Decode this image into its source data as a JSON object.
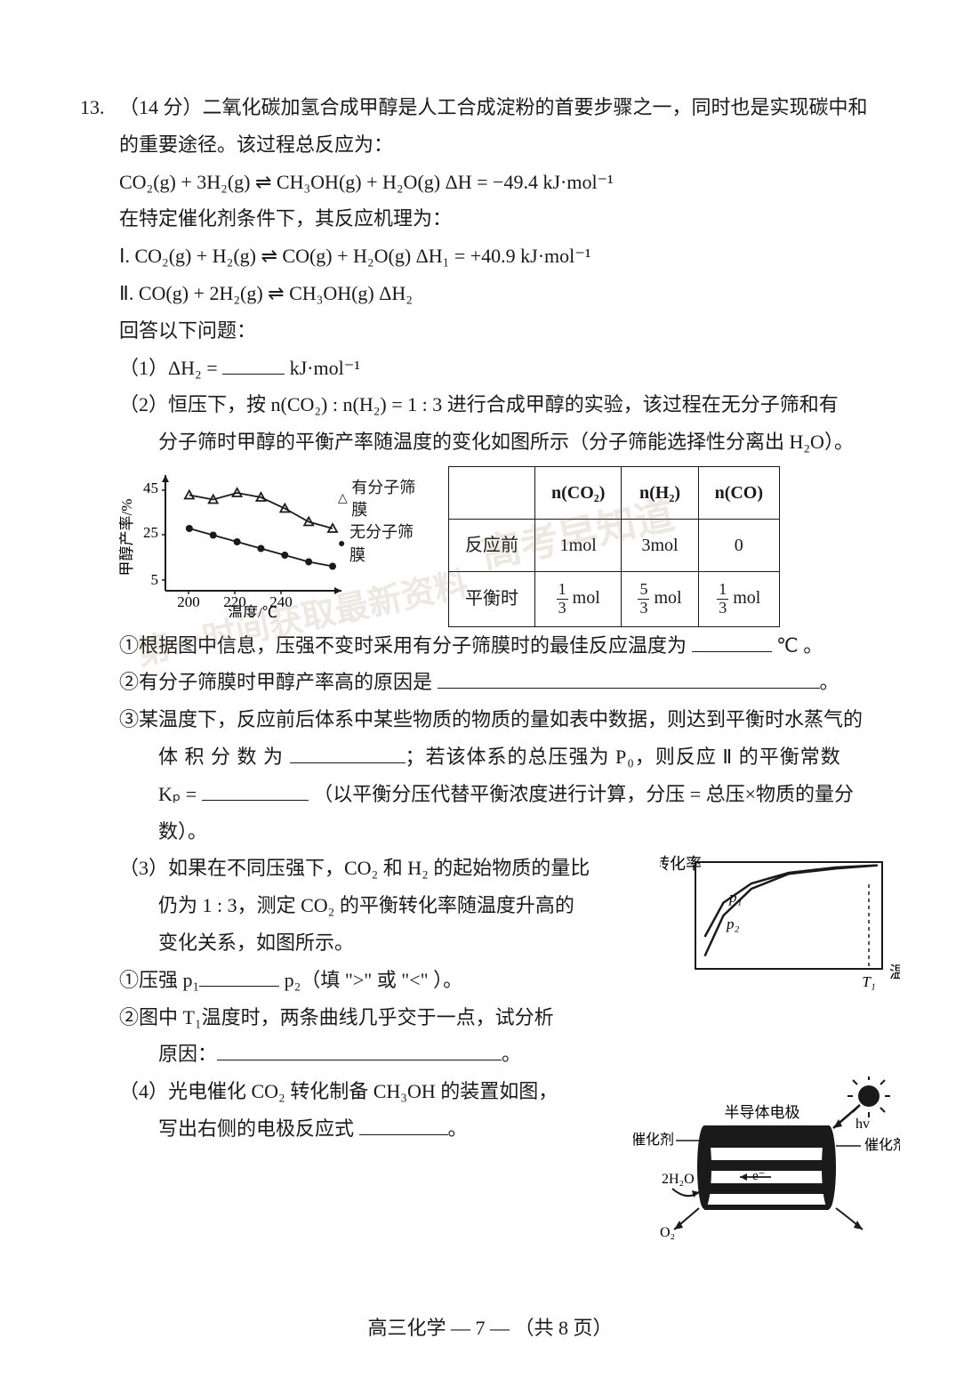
{
  "question": {
    "number": "13.",
    "points": "（14 分）",
    "stem_a": "二氧化碳加氢合成甲醇是人工合成淀粉的首要步骤之一，同时也是实现碳中和",
    "stem_b": "的重要途径。该过程总反应为：",
    "overall_eqn": "CO₂(g) + 3H₂(g) ⇌ CH₃OH(g) + H₂O(g)    ΔH = −49.4 kJ·mol⁻¹",
    "mech_intro": "在特定催化剂条件下，其反应机理为：",
    "mech_I": "Ⅰ. CO₂(g) + H₂(g) ⇌ CO(g) + H₂O(g)       ΔH₁ = +40.9 kJ·mol⁻¹",
    "mech_II": "Ⅱ. CO(g) + 2H₂(g) ⇌ CH₃OH(g)              ΔH₂",
    "answer_prompt": "回答以下问题：",
    "p1": "（1）ΔH₂ = ",
    "p1_unit": " kJ·mol⁻¹",
    "p2": "（2）恒压下，按 n(CO₂) : n(H₂) = 1 : 3 进行合成甲醇的实验，该过程在无分子筛和有",
    "p2b": "分子筛时甲醇的平衡产率随温度的变化如图所示（分子筛能选择性分离出 H₂O）。",
    "p2_1a": "①根据图中信息，压强不变时采用有分子筛膜时的最佳反应温度为 ",
    "p2_1b": "℃ 。",
    "p2_2": "②有分子筛膜时甲醇产率高的原因是 ",
    "p2_3a": "③某温度下，反应前后体系中某些物质的物质的量如表中数据，则达到平衡时水蒸气的",
    "p2_3b": "体 积 分 数 为 ",
    "p2_3c": "；若该体系的总压强为 P₀，则反应 Ⅱ 的平衡常数",
    "p2_3d": "Kₚ = ",
    "p2_3e": "（以平衡分压代替平衡浓度进行计算，分压 = 总压×物质的量分数）。",
    "p3a": "（3）如果在不同压强下，CO₂ 和 H₂ 的起始物质的量比",
    "p3b": "仍为 1 : 3，测定 CO₂ 的平衡转化率随温度升高的",
    "p3c": "变化关系，如图所示。",
    "p3_1a": "①压强 p₁",
    "p3_1b": " p₂（填 \">\" 或 \"<\" ）。",
    "p3_2a": "②图中 T₁温度时，两条曲线几乎交于一点，试分析",
    "p3_2b": "原因：",
    "p4a": "（4）光电催化 CO₂ 转化制备 CH₃OH 的装置如图，",
    "p4b": "写出右侧的电极反应式 ",
    "footer": "高三化学  — 7 —  （共 8 页）"
  },
  "chart1": {
    "type": "line-scatter",
    "xlabel": "温度/℃",
    "ylabel": "甲醇产率/%",
    "x_ticks": [
      200,
      220,
      240
    ],
    "y_ticks": [
      5,
      25,
      45
    ],
    "xlim": [
      190,
      260
    ],
    "ylim": [
      0,
      50
    ],
    "series": [
      {
        "name": "有分子筛膜",
        "marker": "triangle",
        "color": "#1a1a1a",
        "points": [
          [
            200,
            43
          ],
          [
            210,
            41
          ],
          [
            220,
            44
          ],
          [
            230,
            42
          ],
          [
            240,
            37
          ],
          [
            250,
            31
          ],
          [
            260,
            28
          ]
        ]
      },
      {
        "name": "无分子筛膜",
        "marker": "circle",
        "color": "#1a1a1a",
        "points": [
          [
            200,
            28
          ],
          [
            210,
            25
          ],
          [
            220,
            22
          ],
          [
            230,
            19
          ],
          [
            240,
            16
          ],
          [
            250,
            13
          ],
          [
            260,
            11
          ]
        ]
      }
    ],
    "axis_color": "#1a1a1a",
    "background_color": "#ffffff"
  },
  "table1": {
    "headers": [
      "",
      "n(CO₂)",
      "n(H₂)",
      "n(CO)"
    ],
    "rows": [
      {
        "label": "反应前",
        "cells": [
          "1mol",
          "3mol",
          "0"
        ]
      },
      {
        "label": "平衡时",
        "cells": [
          "1/3 mol",
          "5/3 mol",
          "1/3 mol"
        ]
      }
    ]
  },
  "chart2": {
    "type": "line",
    "xlabel": "温度",
    "ylabel": "转化率",
    "curve_labels": [
      "p₁",
      "p₂"
    ],
    "x_marker": "T₁",
    "axis_color": "#1a1a1a",
    "line_color": "#1a1a1a",
    "p1_points": [
      [
        10,
        12
      ],
      [
        30,
        50
      ],
      [
        60,
        75
      ],
      [
        100,
        89
      ],
      [
        150,
        94
      ],
      [
        195,
        97
      ]
    ],
    "p2_points": [
      [
        10,
        30
      ],
      [
        30,
        62
      ],
      [
        60,
        80
      ],
      [
        100,
        90
      ],
      [
        150,
        95
      ],
      [
        195,
        97
      ]
    ]
  },
  "diagram": {
    "labels": {
      "top": "半导体电极",
      "left": "催化剂",
      "right": "催化剂",
      "hv": "hv",
      "water": "2H₂O",
      "o2": "O₂",
      "electron": "e⁻"
    },
    "sun_color": "#1a1a1a",
    "body_color": "#1a1a1a"
  },
  "watermarks": [
    "高考早知道",
    "考",
    "第一时间获取最新资料"
  ]
}
